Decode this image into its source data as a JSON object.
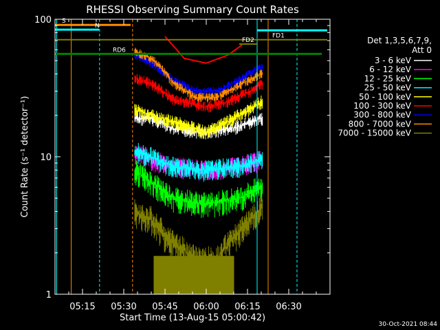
{
  "chart_data": {
    "type": "line",
    "title": "RHESSI Observing Summary Count Rates",
    "xlabel": "Start Time (13-Aug-15 05:00:42)",
    "ylabel": "Count Rate (s⁻¹ detector⁻¹)",
    "yscale": "log",
    "ylim": [
      1,
      100
    ],
    "xlim_minutes": [
      5.0,
      105.0
    ],
    "x_ticks": [
      {
        "label": "05:15",
        "m": 15.0
      },
      {
        "label": "05:30",
        "m": 30.0
      },
      {
        "label": "05:45",
        "m": 45.0
      },
      {
        "label": "06:00",
        "m": 60.0
      },
      {
        "label": "06:15",
        "m": 75.0
      },
      {
        "label": "06:30",
        "m": 90.0
      }
    ],
    "y_ticks": [
      {
        "label": "1",
        "v": 1
      },
      {
        "label": "10",
        "v": 10
      },
      {
        "label": "100",
        "v": 100
      }
    ],
    "legend": {
      "header": [
        "Det 1,3,5,6,7,9,",
        "Att 0"
      ],
      "position": "right"
    },
    "series": [
      {
        "name": "3 - 6 keV",
        "color": "#ffffff",
        "values": [
          [
            34,
            19
          ],
          [
            40,
            19
          ],
          [
            48,
            16
          ],
          [
            60,
            15
          ],
          [
            72,
            16.5
          ],
          [
            80,
            19
          ]
        ]
      },
      {
        "name": "6 - 12 keV",
        "color": "#ff00ff",
        "values": [
          [
            34,
            10.5
          ],
          [
            40,
            9.5
          ],
          [
            48,
            8.5
          ],
          [
            60,
            8
          ],
          [
            72,
            8.5
          ],
          [
            80,
            9.5
          ]
        ]
      },
      {
        "name": "12 - 25 keV",
        "color": "#00ff00",
        "values": [
          [
            34,
            8
          ],
          [
            40,
            6.5
          ],
          [
            48,
            5
          ],
          [
            60,
            4.5
          ],
          [
            72,
            5
          ],
          [
            80,
            6
          ]
        ]
      },
      {
        "name": "25 - 50 keV",
        "color": "#00ffff",
        "values": [
          [
            34,
            11
          ],
          [
            40,
            10
          ],
          [
            48,
            8.5
          ],
          [
            60,
            8
          ],
          [
            72,
            8.5
          ],
          [
            80,
            9.5
          ]
        ]
      },
      {
        "name": "50 - 100 keV",
        "color": "#ffff00",
        "values": [
          [
            34,
            22
          ],
          [
            40,
            20
          ],
          [
            48,
            18
          ],
          [
            60,
            15
          ],
          [
            68,
            18
          ],
          [
            76,
            22
          ],
          [
            80,
            25
          ]
        ]
      },
      {
        "name": "100 - 300 keV",
        "color": "#ff0000",
        "values": [
          [
            34,
            37
          ],
          [
            40,
            34
          ],
          [
            48,
            26
          ],
          [
            60,
            23
          ],
          [
            68,
            25
          ],
          [
            76,
            30
          ],
          [
            80,
            34
          ]
        ]
      },
      {
        "name": "300 - 800 keV",
        "color": "#0000ff",
        "values": [
          [
            34,
            55
          ],
          [
            40,
            48
          ],
          [
            48,
            36
          ],
          [
            56,
            30
          ],
          [
            64,
            30
          ],
          [
            72,
            36
          ],
          [
            80,
            45
          ]
        ]
      },
      {
        "name": "800 - 7000 keV",
        "color": "#ff8c00",
        "values": [
          [
            34,
            58
          ],
          [
            40,
            52
          ],
          [
            48,
            34
          ],
          [
            56,
            27
          ],
          [
            64,
            27
          ],
          [
            72,
            33
          ],
          [
            80,
            40
          ]
        ]
      },
      {
        "name": "7000 - 15000 keV",
        "color": "#808000",
        "values": [
          [
            34,
            4
          ],
          [
            40,
            3.5
          ],
          [
            46,
            2.5
          ],
          [
            56,
            1.8
          ],
          [
            64,
            1.8
          ],
          [
            72,
            2.8
          ],
          [
            80,
            4.2
          ]
        ]
      }
    ],
    "red_after_gap": [
      [
        45,
        75
      ],
      [
        52,
        52
      ],
      [
        60,
        48
      ],
      [
        68,
        55
      ],
      [
        73,
        65
      ]
    ],
    "flags": [
      {
        "label": "S",
        "color": "#ff8c00"
      },
      {
        "label": "N",
        "color": "#00ffff"
      },
      {
        "label": "FD1",
        "color": "#808000"
      },
      {
        "label": "FD2",
        "color": "#808000"
      },
      {
        "label": "RD6",
        "color": "#008000"
      }
    ],
    "timestamp": "30-Oct-2021 08:44"
  }
}
